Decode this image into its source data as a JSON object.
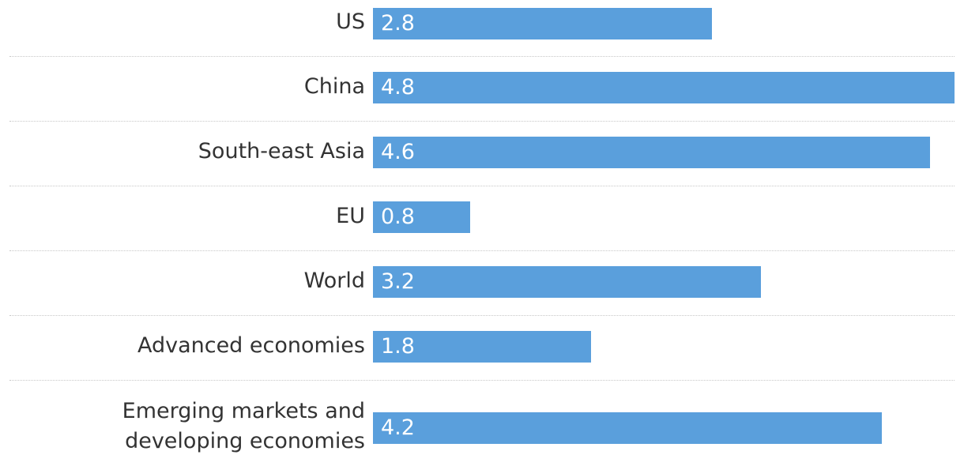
{
  "chart_data": {
    "type": "bar",
    "orientation": "horizontal",
    "categories": [
      "US",
      "China",
      "South-east Asia",
      "EU",
      "World",
      "Advanced economies",
      "Emerging markets and developing economies"
    ],
    "values": [
      2.8,
      4.8,
      4.6,
      0.8,
      3.2,
      1.8,
      4.2
    ],
    "value_labels": [
      "2.8",
      "4.8",
      "4.6",
      "0.8",
      "3.2",
      "1.8",
      "4.2"
    ],
    "xlim": [
      0,
      4.8
    ],
    "bar_color": "#5a9fdc"
  }
}
